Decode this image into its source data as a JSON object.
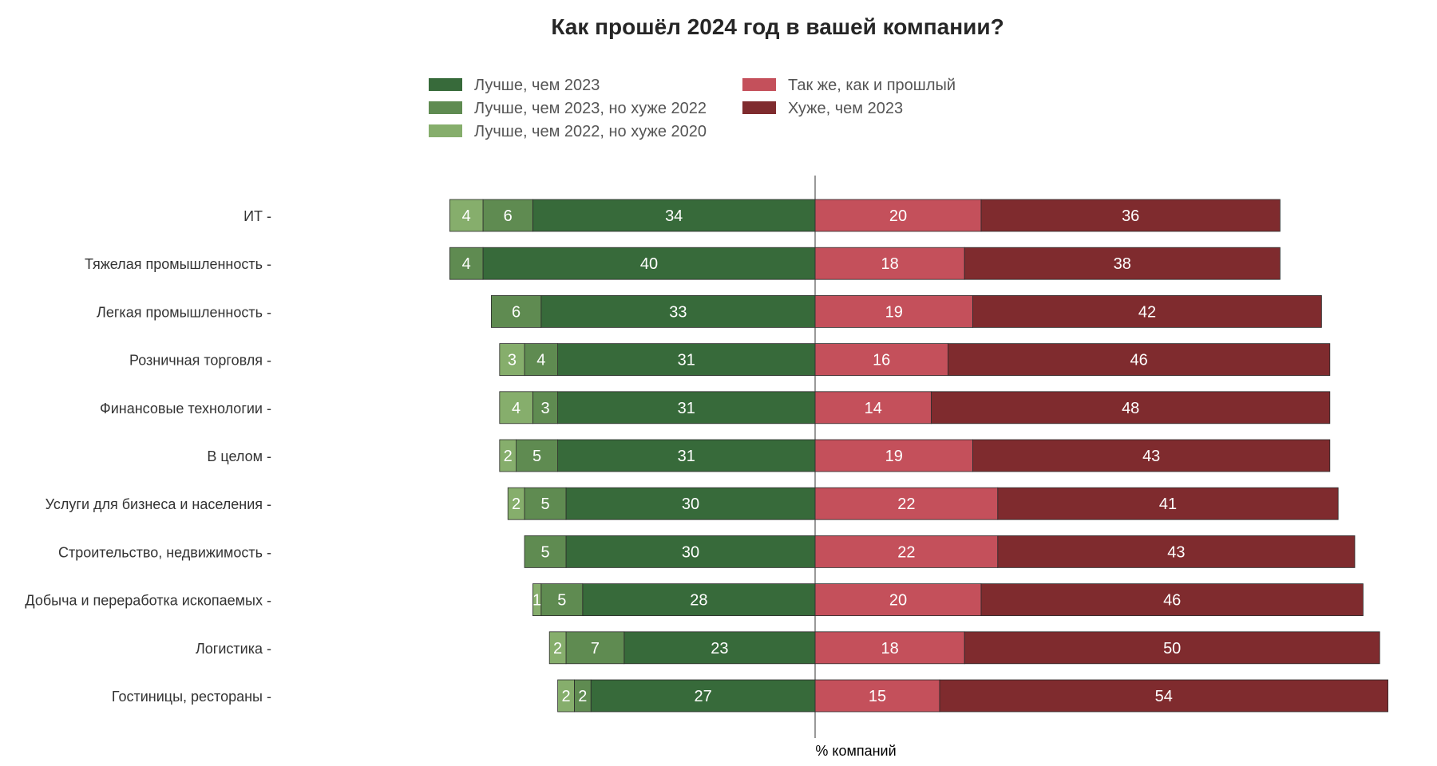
{
  "chart_data": {
    "type": "bar",
    "orientation": "horizontal-diverging",
    "title": "Как прошёл 2024 год в вашей компании?",
    "xlabel": "% компаний",
    "ylabel": "",
    "legend_position": "top",
    "grid": false,
    "xlim": [
      -50,
      72
    ],
    "categories": [
      "ИТ",
      "Тяжелая промышленность",
      "Легкая промышленность",
      "Розничная торговля",
      "Финансовые технологии",
      "В целом",
      "Услуги для бизнеса и населения",
      "Строительство, недвижимость",
      "Добыча и переработка ископаемых",
      "Логистика",
      "Гостиницы, рестораны"
    ],
    "series": [
      {
        "name": "Лучше, чем 2023",
        "side": "left",
        "color": "#376a3a",
        "values": [
          34,
          40,
          33,
          31,
          31,
          31,
          30,
          30,
          28,
          23,
          27
        ]
      },
      {
        "name": "Лучше, чем 2023, но хуже 2022",
        "side": "left",
        "color": "#5f8b51",
        "values": [
          6,
          4,
          6,
          4,
          3,
          5,
          5,
          5,
          5,
          7,
          2
        ]
      },
      {
        "name": "Лучше, чем 2022, но хуже 2020",
        "side": "left",
        "color": "#86ae6c",
        "values": [
          4,
          0,
          0,
          3,
          4,
          2,
          2,
          0,
          1,
          2,
          2
        ]
      },
      {
        "name": "Так же, как и прошлый",
        "side": "right",
        "color": "#c4505b",
        "values": [
          20,
          18,
          19,
          16,
          14,
          19,
          22,
          22,
          20,
          18,
          15
        ]
      },
      {
        "name": "Хуже, чем 2023",
        "side": "right",
        "color": "#7f2b2e",
        "values": [
          36,
          38,
          42,
          46,
          48,
          43,
          41,
          43,
          46,
          50,
          54
        ]
      }
    ]
  }
}
